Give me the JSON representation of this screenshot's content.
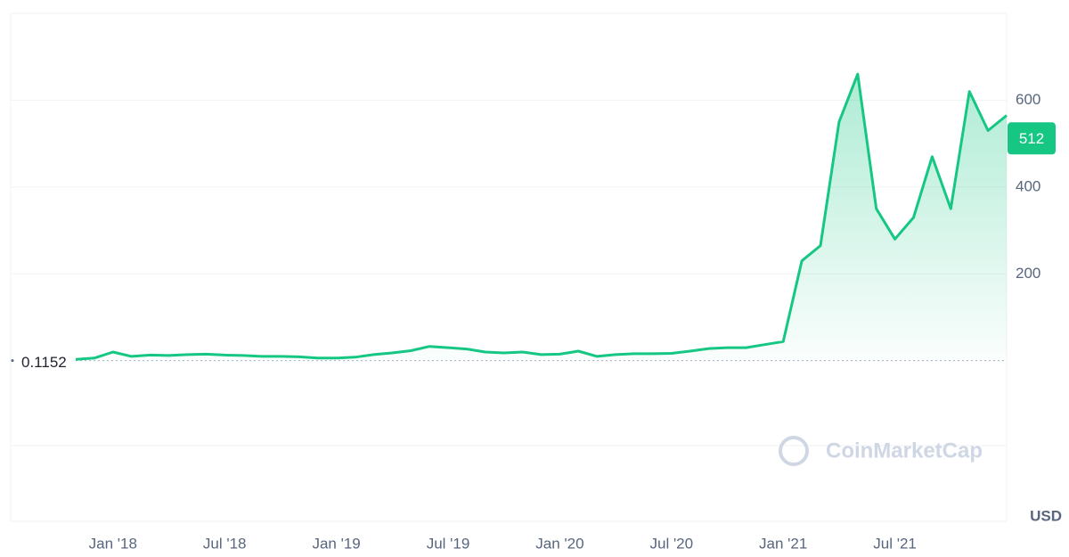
{
  "chart_data": {
    "type": "line",
    "x": [
      "2017-11",
      "2017-12",
      "2018-01",
      "2018-02",
      "2018-03",
      "2018-04",
      "2018-05",
      "2018-06",
      "2018-07",
      "2018-08",
      "2018-09",
      "2018-10",
      "2018-11",
      "2018-12",
      "2019-01",
      "2019-02",
      "2019-03",
      "2019-04",
      "2019-05",
      "2019-06",
      "2019-07",
      "2019-08",
      "2019-09",
      "2019-10",
      "2019-11",
      "2019-12",
      "2020-01",
      "2020-02",
      "2020-03",
      "2020-04",
      "2020-05",
      "2020-06",
      "2020-07",
      "2020-08",
      "2020-09",
      "2020-10",
      "2020-11",
      "2020-12",
      "2021-01",
      "2021-02",
      "2021-03",
      "2021-04",
      "2021-05",
      "2021-06",
      "2021-07",
      "2021-08",
      "2021-09",
      "2021-10",
      "2021-11",
      "2021-12",
      "2022-01"
    ],
    "values": [
      3,
      6,
      20,
      10,
      13,
      12,
      14,
      15,
      13,
      12,
      10,
      10,
      9,
      6,
      6,
      8,
      14,
      18,
      23,
      33,
      30,
      27,
      20,
      18,
      20,
      14,
      15,
      22,
      10,
      14,
      16,
      16,
      17,
      22,
      28,
      30,
      30,
      37,
      44,
      230,
      265,
      550,
      660,
      350,
      280,
      330,
      470,
      350,
      620,
      530,
      565
    ],
    "color": "#16c784",
    "xlim": [
      "2017-11",
      "2022-01"
    ],
    "xticks": [
      {
        "value": "2018-01",
        "label": "Jan '18"
      },
      {
        "value": "2018-07",
        "label": "Jul '18"
      },
      {
        "value": "2019-01",
        "label": "Jan '19"
      },
      {
        "value": "2019-07",
        "label": "Jul '19"
      },
      {
        "value": "2020-01",
        "label": "Jan '20"
      },
      {
        "value": "2020-07",
        "label": "Jul '20"
      },
      {
        "value": "2021-01",
        "label": "Jan '21"
      },
      {
        "value": "2021-07",
        "label": "Jul '21"
      }
    ],
    "ylim": [
      -370,
      800
    ],
    "yticks": [
      200,
      400,
      600
    ],
    "grid": true,
    "baseline": 0.1152,
    "current_price": 512,
    "currency": "USD",
    "watermark": "CoinMarketCap"
  }
}
